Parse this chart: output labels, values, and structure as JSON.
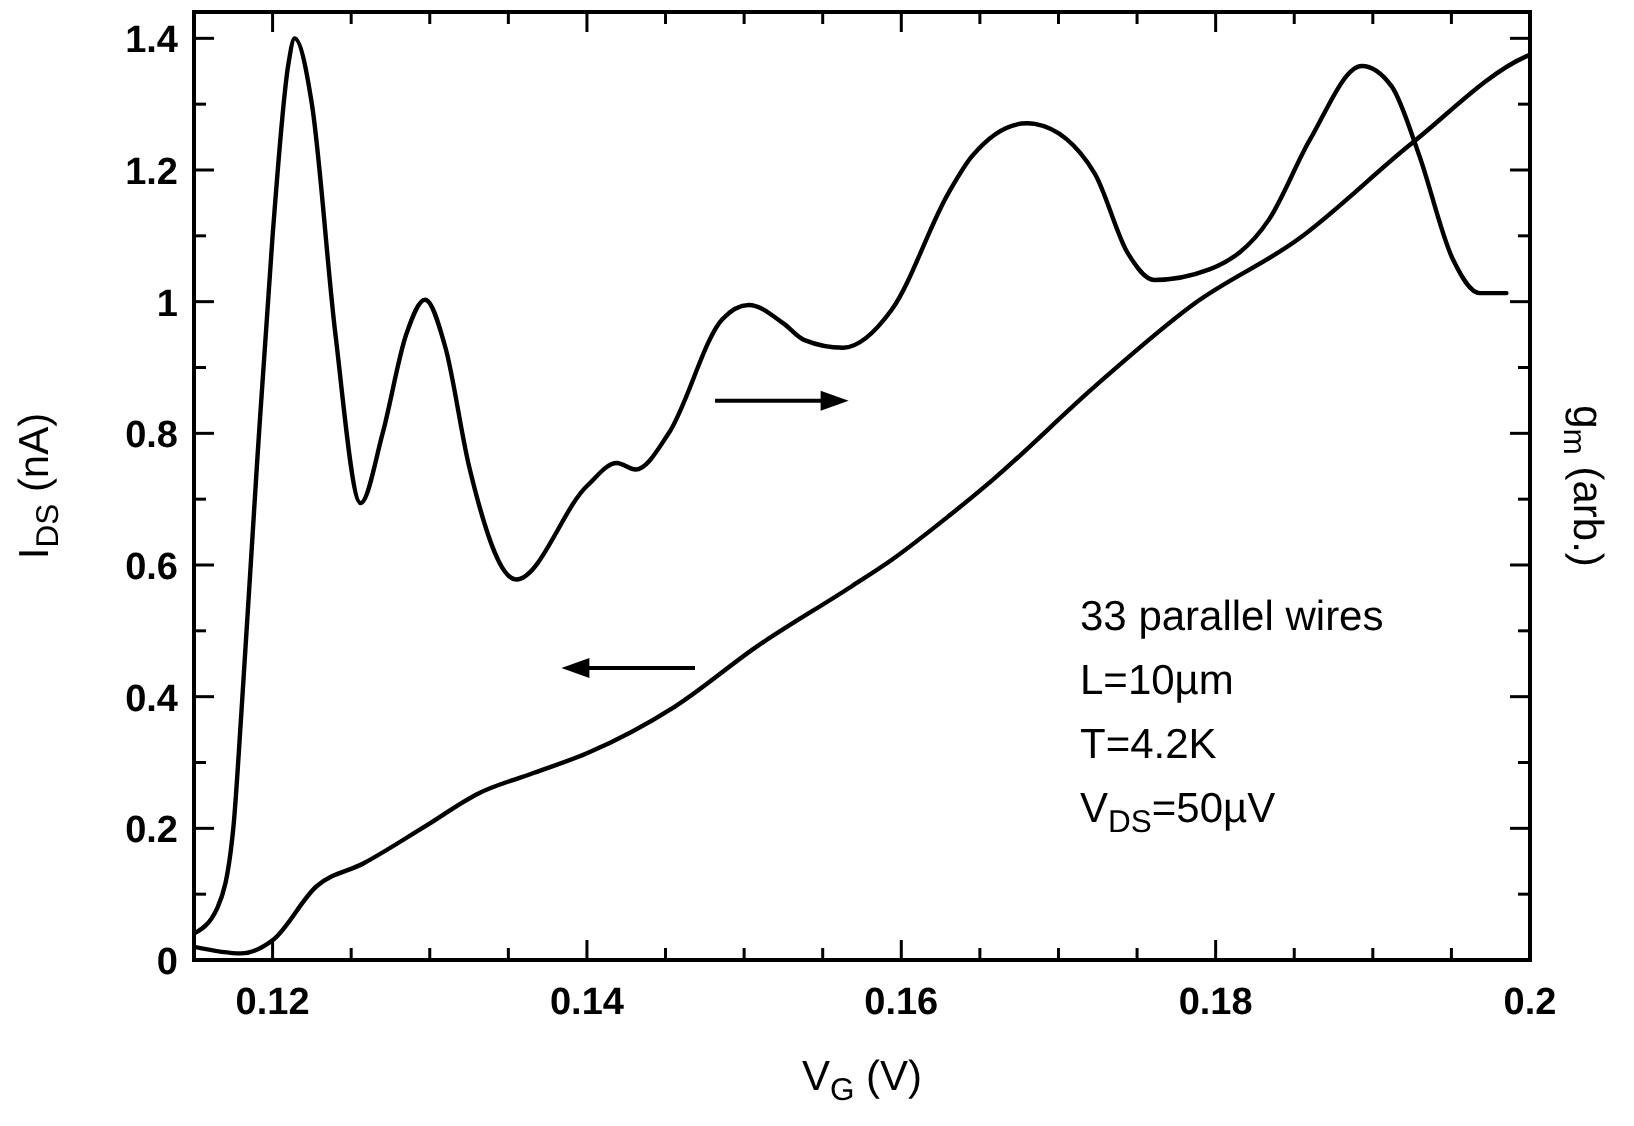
{
  "chart_data": {
    "type": "line",
    "xlabel": "V$_{G}$ (V)",
    "ylabel": "I$_{DS}$ (nA)",
    "y2label": "g$_{m}$ (arb.)",
    "xlim": [
      0.115,
      0.2
    ],
    "xticks": [
      {
        "value": 0.115,
        "label": null
      },
      0.12,
      {
        "value": 0.125,
        "label": null
      },
      0.14,
      {
        "value": 0.13,
        "label": null
      },
      {
        "value": 0.135,
        "label": null
      },
      {
        "value": 0.145,
        "label": null
      },
      {
        "value": 0.15,
        "label": null
      },
      {
        "value": 0.155,
        "label": null
      },
      0.16,
      {
        "value": 0.165,
        "label": null
      },
      {
        "value": 0.17,
        "label": null
      },
      {
        "value": 0.175,
        "label": null
      },
      0.18,
      {
        "value": 0.185,
        "label": null
      },
      {
        "value": 0.19,
        "label": null
      },
      {
        "value": 0.195,
        "label": null
      },
      0.2
    ],
    "ylim": [
      0,
      1.44
    ],
    "yticks": [
      0,
      {
        "value": 0.1,
        "label": null
      },
      0.2,
      {
        "value": 0.3,
        "label": null
      },
      0.4,
      {
        "value": 0.5,
        "label": null
      },
      0.6,
      {
        "value": 0.7,
        "label": null
      },
      0.8,
      {
        "value": 0.9,
        "label": null
      },
      1,
      {
        "value": 1.1,
        "label": null
      },
      1.2,
      {
        "value": 1.3,
        "label": null
      },
      1.4
    ],
    "series": [
      {
        "color": "#000000",
        "x": [
          0.115,
          0.118,
          0.12,
          0.1228,
          0.1258,
          0.1297,
          0.1331,
          0.1366,
          0.14,
          0.1456,
          0.1508,
          0.1568,
          0.1594,
          0.163,
          0.1658,
          0.1723,
          0.1787,
          0.1852,
          0.1925,
          0.1998,
          0.2
        ],
        "values": [
          0.02,
          0.01,
          0.03,
          0.112,
          0.147,
          0.203,
          0.253,
          0.284,
          0.314,
          0.385,
          0.476,
          0.567,
          0.608,
          0.674,
          0.729,
          0.871,
          0.998,
          1.094,
          1.241,
          1.373,
          1.375
        ]
      },
      {
        "color": "#000000",
        "x": [
          0.115,
          0.1165,
          0.1175,
          0.118,
          0.119,
          0.12,
          0.121,
          0.1214,
          0.1225,
          0.124,
          0.1256,
          0.127,
          0.1285,
          0.1297,
          0.131,
          0.1325,
          0.1355,
          0.14,
          0.1419,
          0.1431,
          0.1452,
          0.1486,
          0.1503,
          0.1525,
          0.1538,
          0.1563,
          0.1594,
          0.163,
          0.1645,
          0.168,
          0.1685,
          0.1723,
          0.1744,
          0.1761,
          0.1796,
          0.1834,
          0.186,
          0.1893,
          0.1912,
          0.1929,
          0.1951,
          0.1968,
          0.1985
        ],
        "values": [
          0.04,
          0.08,
          0.2,
          0.37,
          0.75,
          1.1,
          1.36,
          1.4,
          1.3,
          0.95,
          0.694,
          0.8,
          0.95,
          1.003,
          0.93,
          0.75,
          0.578,
          0.72,
          0.755,
          0.745,
          0.8,
          0.973,
          0.995,
          0.967,
          0.942,
          0.93,
          0.988,
          1.165,
          1.221,
          1.271,
          1.27,
          1.195,
          1.074,
          1.033,
          1.049,
          1.125,
          1.246,
          1.358,
          1.327,
          1.226,
          1.064,
          1.013,
          1.013
        ]
      }
    ],
    "annotations": [
      "33 parallel wires",
      "L=10µm",
      "T=4.2K",
      "V$_{DS}$=50µV"
    ]
  }
}
